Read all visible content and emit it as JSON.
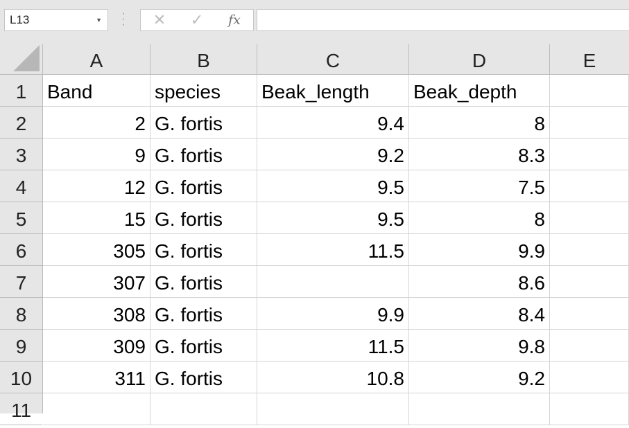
{
  "name_box": "L13",
  "formula_bar": {
    "cancel_icon": "✕",
    "enter_icon": "✓",
    "function_icon": "fx",
    "value": ""
  },
  "columns": [
    "A",
    "B",
    "C",
    "D",
    "E"
  ],
  "rows": [
    {
      "num": "1",
      "cells": [
        "Band",
        "species",
        "Beak_length",
        "Beak_depth",
        ""
      ]
    },
    {
      "num": "2",
      "cells": [
        "2",
        "G. fortis",
        "9.4",
        "8",
        ""
      ]
    },
    {
      "num": "3",
      "cells": [
        "9",
        "G. fortis",
        "9.2",
        "8.3",
        ""
      ]
    },
    {
      "num": "4",
      "cells": [
        "12",
        "G. fortis",
        "9.5",
        "7.5",
        ""
      ]
    },
    {
      "num": "5",
      "cells": [
        "15",
        "G. fortis",
        "9.5",
        "8",
        ""
      ]
    },
    {
      "num": "6",
      "cells": [
        "305",
        "G. fortis",
        "11.5",
        "9.9",
        ""
      ]
    },
    {
      "num": "7",
      "cells": [
        "307",
        "G. fortis",
        "",
        "8.6",
        ""
      ]
    },
    {
      "num": "8",
      "cells": [
        "308",
        "G. fortis",
        "9.9",
        "8.4",
        ""
      ]
    },
    {
      "num": "9",
      "cells": [
        "309",
        "G. fortis",
        "11.5",
        "9.8",
        ""
      ]
    },
    {
      "num": "10",
      "cells": [
        "311",
        "G. fortis",
        "10.8",
        "9.2",
        ""
      ]
    },
    {
      "num": "11",
      "cells": [
        "",
        "",
        "",
        "",
        ""
      ]
    }
  ]
}
